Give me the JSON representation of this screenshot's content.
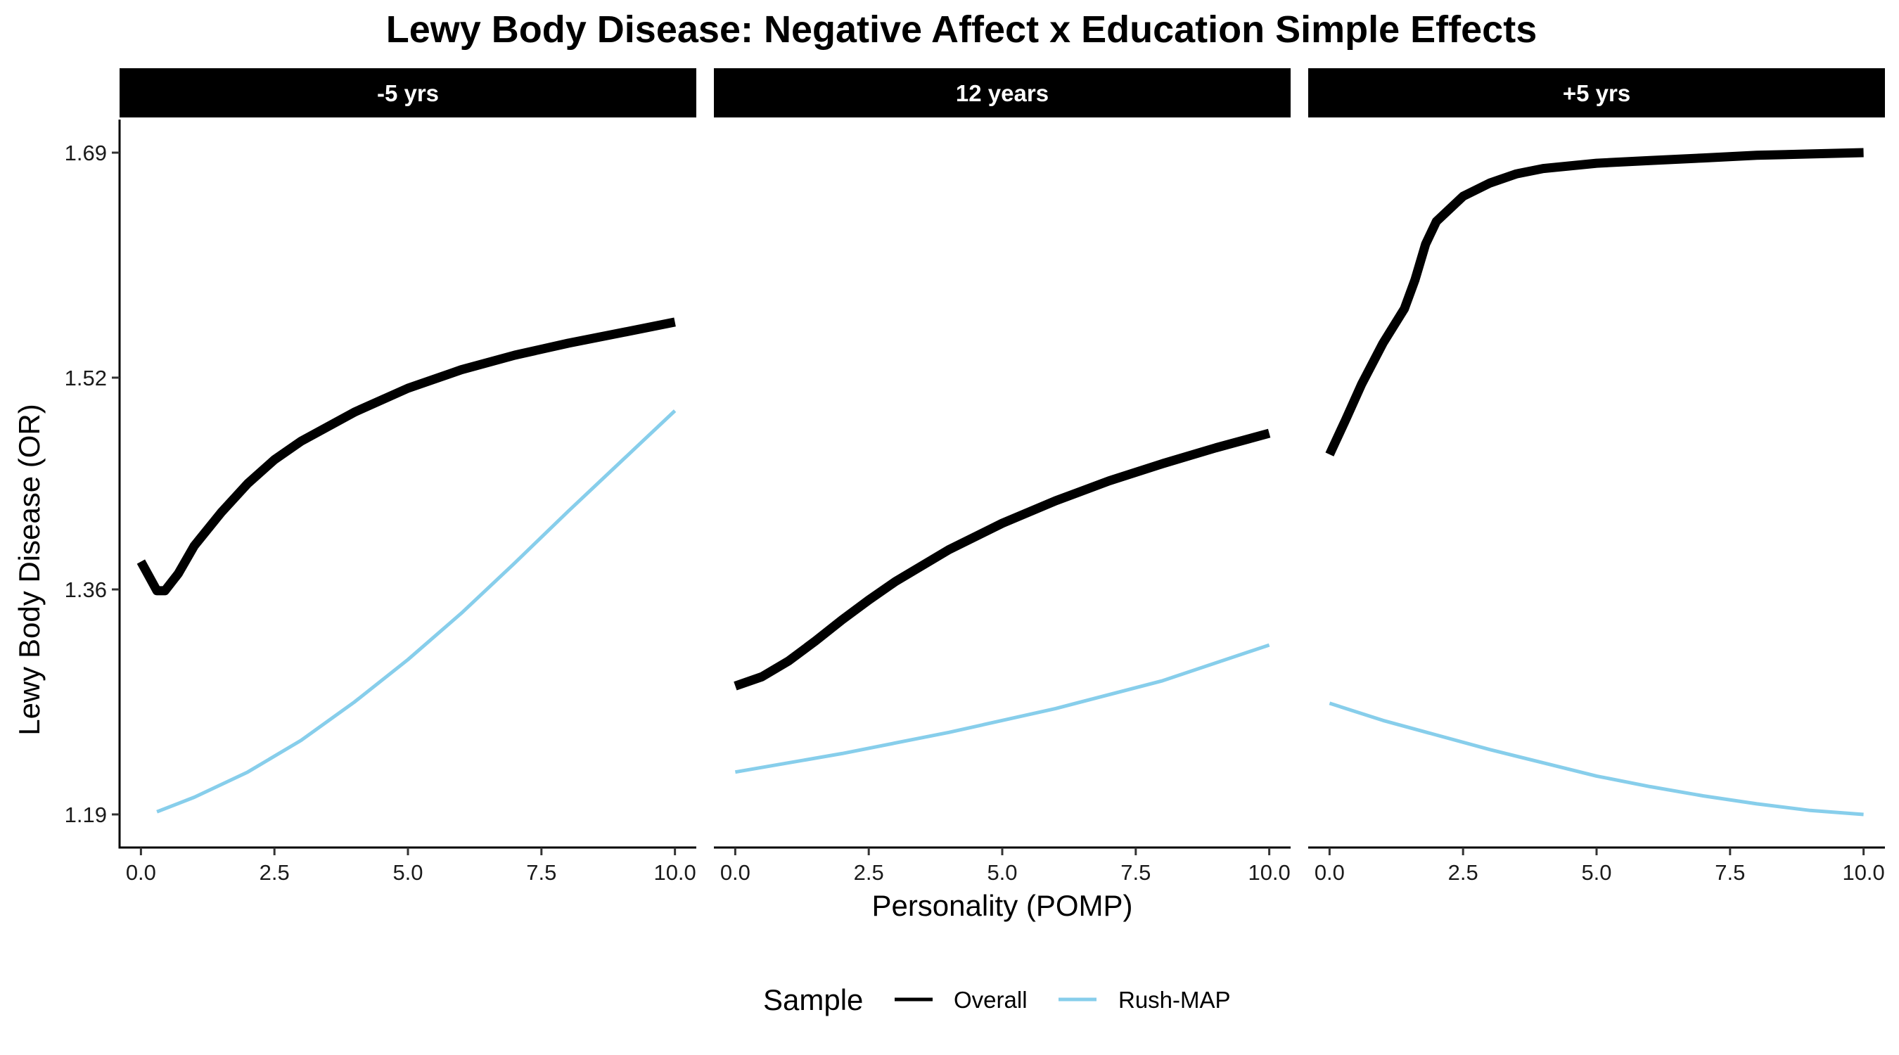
{
  "chart_data": {
    "type": "line",
    "title": "Lewy Body Disease: Negative Affect x Education Simple Effects",
    "xlabel": "Personality (POMP)",
    "ylabel": "Lewy Body Disease (OR)",
    "xlim": [
      -0.4,
      10.4
    ],
    "ylim": [
      1.165,
      1.715
    ],
    "x_ticks": [
      0,
      2.5,
      5,
      7.5,
      10
    ],
    "x_tick_labels": [
      "0.0",
      "2.5",
      "5.0",
      "7.5",
      "10.0"
    ],
    "y_ticks": [
      1.19,
      1.36,
      1.52,
      1.69
    ],
    "y_tick_labels": [
      "1.19",
      "1.36",
      "1.52",
      "1.69"
    ],
    "grid": false,
    "legend": {
      "title": "Sample",
      "position": "bottom",
      "entries": [
        {
          "name": "Overall",
          "color": "#000000"
        },
        {
          "name": "Rush-MAP",
          "color": "#87CEEB"
        }
      ]
    },
    "panels": [
      {
        "label": "-5 yrs",
        "series": [
          {
            "name": "Overall",
            "color": "#000000",
            "x": [
              0,
              0.15,
              0.3,
              0.45,
              0.7,
              1,
              1.5,
              2,
              2.5,
              3,
              4,
              5,
              6,
              7,
              8,
              9,
              10
            ],
            "y": [
              1.381,
              1.37,
              1.359,
              1.359,
              1.372,
              1.393,
              1.418,
              1.44,
              1.458,
              1.472,
              1.494,
              1.512,
              1.526,
              1.537,
              1.546,
              1.554,
              1.562
            ]
          },
          {
            "name": "Rush-MAP",
            "color": "#87CEEB",
            "x": [
              0.3,
              1,
              2,
              3,
              4,
              5,
              6,
              7,
              8,
              9,
              10
            ],
            "y": [
              1.192,
              1.203,
              1.222,
              1.246,
              1.275,
              1.307,
              1.342,
              1.38,
              1.419,
              1.457,
              1.495
            ]
          }
        ]
      },
      {
        "label": "12 years",
        "series": [
          {
            "name": "Overall",
            "color": "#000000",
            "x": [
              0,
              0.5,
              1,
              1.5,
              2,
              2.5,
              3,
              4,
              5,
              6,
              7,
              8,
              9,
              10
            ],
            "y": [
              1.287,
              1.294,
              1.306,
              1.321,
              1.337,
              1.352,
              1.366,
              1.39,
              1.41,
              1.427,
              1.442,
              1.455,
              1.467,
              1.478
            ]
          },
          {
            "name": "Rush-MAP",
            "color": "#87CEEB",
            "x": [
              0,
              2,
              4,
              6,
              8,
              10
            ],
            "y": [
              1.222,
              1.236,
              1.252,
              1.27,
              1.291,
              1.318
            ]
          }
        ]
      },
      {
        "label": "+5 yrs",
        "series": [
          {
            "name": "Overall",
            "color": "#000000",
            "x": [
              0,
              0.3,
              0.6,
              1,
              1.4,
              1.6,
              1.8,
              2,
              2.5,
              3,
              3.5,
              4,
              5,
              6,
              7,
              8,
              9,
              10
            ],
            "y": [
              1.462,
              1.488,
              1.515,
              1.546,
              1.572,
              1.594,
              1.621,
              1.638,
              1.657,
              1.667,
              1.674,
              1.678,
              1.682,
              1.684,
              1.686,
              1.688,
              1.689,
              1.69
            ]
          },
          {
            "name": "Rush-MAP",
            "color": "#87CEEB",
            "x": [
              0,
              1,
              2,
              3,
              4,
              5,
              6,
              7,
              8,
              9,
              10
            ],
            "y": [
              1.274,
              1.261,
              1.25,
              1.239,
              1.229,
              1.219,
              1.211,
              1.204,
              1.198,
              1.193,
              1.19
            ]
          }
        ]
      }
    ]
  }
}
